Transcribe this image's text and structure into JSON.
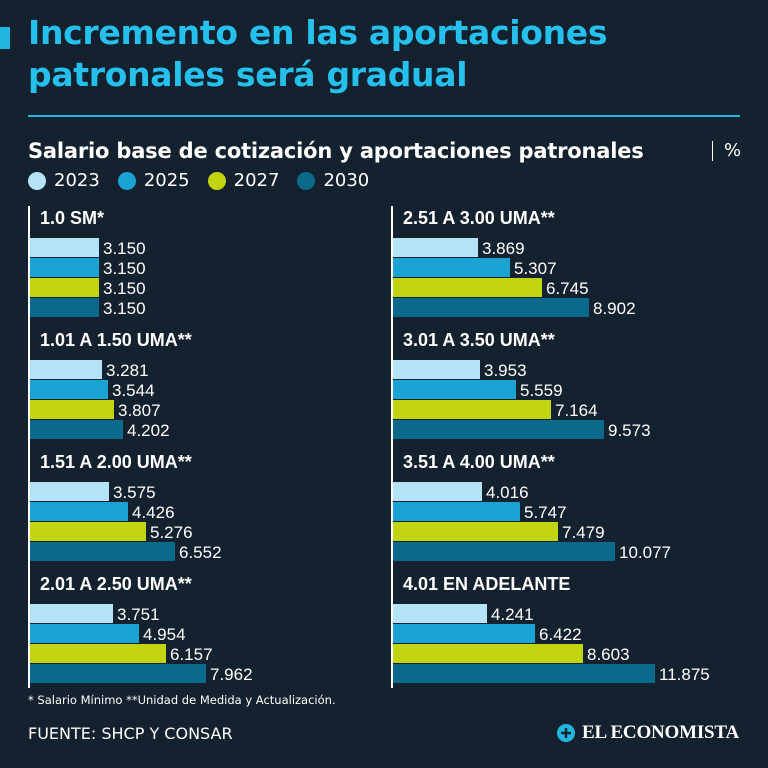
{
  "title": "Incremento en las aportaciones patronales será gradual",
  "chart_data": {
    "type": "bar",
    "orientation": "horizontal",
    "title": "Salario base de cotización y aportaciones patronales",
    "unit": "%",
    "series_names": [
      "2023",
      "2025",
      "2027",
      "2030"
    ],
    "colors": [
      "#b4e2f6",
      "#1aa3d2",
      "#c2d40f",
      "#0b6a8c"
    ],
    "categories": [
      "1.0 SM*",
      "1.01 A 1.50 UMA**",
      "1.51 A 2.00 UMA**",
      "2.01 A 2.50 UMA**",
      "2.51 A 3.00 UMA**",
      "3.01 A 3.50 UMA**",
      "3.51 A 4.00 UMA**",
      "4.01 EN ADELANTE"
    ],
    "series": [
      {
        "name": "2023",
        "values": [
          3.15,
          3.281,
          3.575,
          3.751,
          3.869,
          3.953,
          4.016,
          4.241
        ]
      },
      {
        "name": "2025",
        "values": [
          3.15,
          3.544,
          4.426,
          4.954,
          5.307,
          5.559,
          5.747,
          6.422
        ]
      },
      {
        "name": "2027",
        "values": [
          3.15,
          3.807,
          5.276,
          6.157,
          6.745,
          7.164,
          7.479,
          8.603
        ]
      },
      {
        "name": "2030",
        "values": [
          3.15,
          4.202,
          6.552,
          7.962,
          8.902,
          9.573,
          10.077,
          11.875
        ]
      }
    ],
    "value_labels": [
      [
        "3.150",
        "3.150",
        "3.150",
        "3.150"
      ],
      [
        "3.281",
        "3.544",
        "3.807",
        "4.202"
      ],
      [
        "3.575",
        "4.426",
        "5.276",
        "6.552"
      ],
      [
        "3.751",
        "4.954",
        "6.157",
        "7.962"
      ],
      [
        "3.869",
        "5.307",
        "6.745",
        "8.902"
      ],
      [
        "3.953",
        "5.559",
        "7.164",
        "9.573"
      ],
      [
        "4.016",
        "5.747",
        "7.479",
        "10.077"
      ],
      [
        "4.241",
        "6.422",
        "8.603",
        "11.875"
      ]
    ],
    "xlim": [
      0,
      11.875
    ],
    "legend_position": "top-left",
    "grid": false
  },
  "footnote": "* Salario Mínimo **Unidad de Medida y Actualización.",
  "source": "FUENTE: SHCP Y CONSAR",
  "logo_text": "EL ECONOMISTA"
}
